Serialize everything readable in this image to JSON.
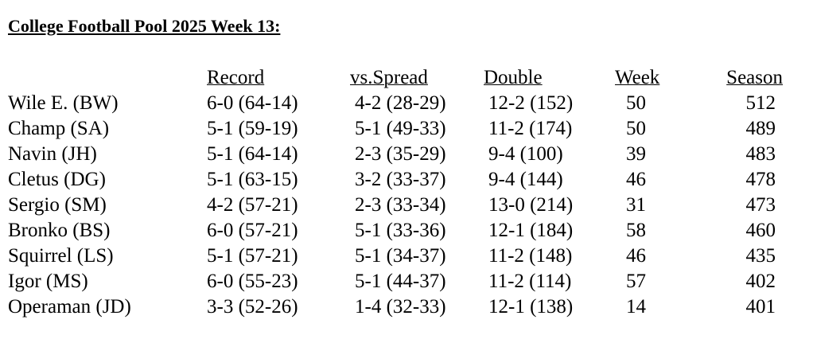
{
  "title": "College Football Pool 2025 Week 13:",
  "headers": [
    "",
    "Record",
    "vs.Spread",
    "Double",
    "Week",
    "Season"
  ],
  "rows": [
    [
      "Wile E. (BW)",
      "6-0 (64-14)",
      "4-2 (28-29)",
      "12-2 (152)",
      "50",
      "512"
    ],
    [
      "Champ  (SA)",
      "5-1 (59-19)",
      "5-1 (49-33)",
      "11-2 (174)",
      "50",
      "489"
    ],
    [
      "Navin (JH)",
      "5-1 (64-14)",
      "2-3 (35-29)",
      "9-4 (100)",
      "39",
      "483"
    ],
    [
      "Cletus (DG)",
      "5-1 (63-15)",
      "3-2 (33-37)",
      "9-4 (144)",
      "46",
      "478"
    ],
    [
      "Sergio (SM)",
      "4-2 (57-21)",
      "2-3 (33-34)",
      "13-0 (214)",
      "31",
      "473"
    ],
    [
      "Bronko (BS)",
      "6-0 (57-21)",
      "5-1 (33-36)",
      "12-1 (184)",
      "58",
      "460"
    ],
    [
      "Squirrel (LS)",
      "5-1 (57-21)",
      "5-1 (34-37)",
      "11-2 (148)",
      "46",
      "435"
    ],
    [
      "Igor (MS)",
      "6-0 (55-23)",
      "5-1 (44-37)",
      "11-2 (114)",
      "57",
      "402"
    ],
    [
      "Operaman (JD)",
      "3-3 (52-26)",
      "1-4 (32-33)",
      "12-1 (138)",
      "14",
      "401"
    ]
  ]
}
